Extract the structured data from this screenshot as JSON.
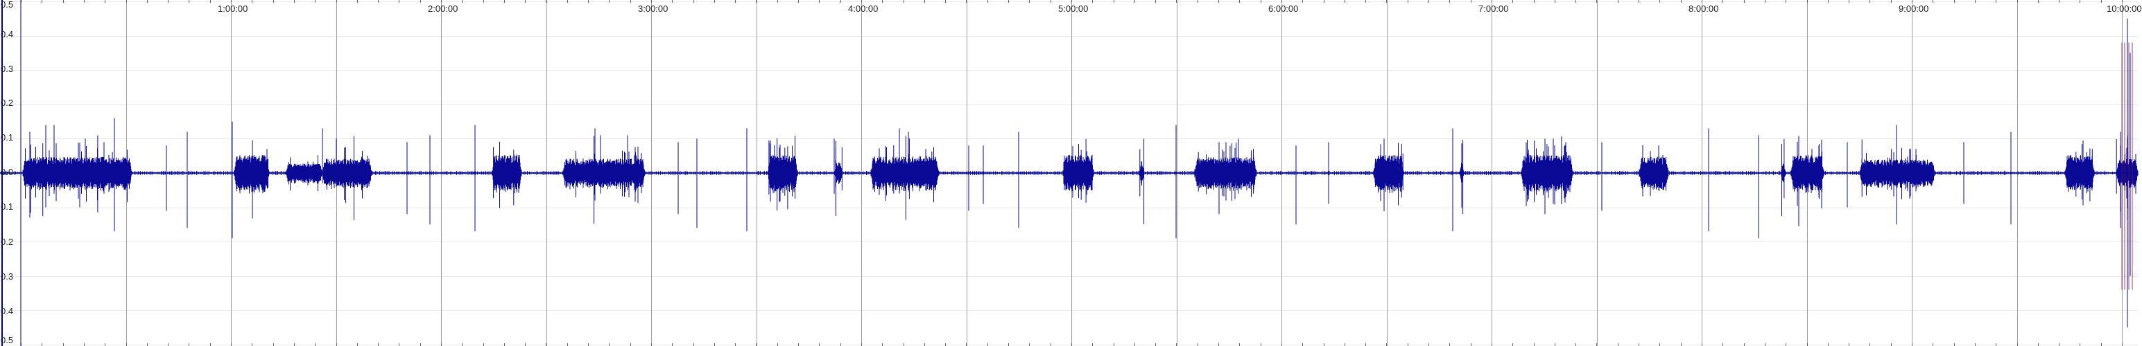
{
  "editor": {
    "amplitude_labels": [
      "0.5",
      "0.4",
      "0.3",
      "0.2",
      "0.1",
      "0.0",
      "0.1",
      "0.2",
      "0.3",
      "0.4",
      "0.5"
    ],
    "time_labels": [
      "1:00:00",
      "2:00:00",
      "3:00:00",
      "4:00:00",
      "5:00:00",
      "6:00:00",
      "7:00:00",
      "8:00:00",
      "9:00:00",
      "10:00:00"
    ],
    "colors": {
      "waveform": "#0a0a96",
      "waveform_secondary": "#7a1040",
      "grid_line": "#9e9e9e",
      "minor_grid_line": "#e8e8e8",
      "background": "#ffffff",
      "playhead": "#00008b"
    }
  }
}
